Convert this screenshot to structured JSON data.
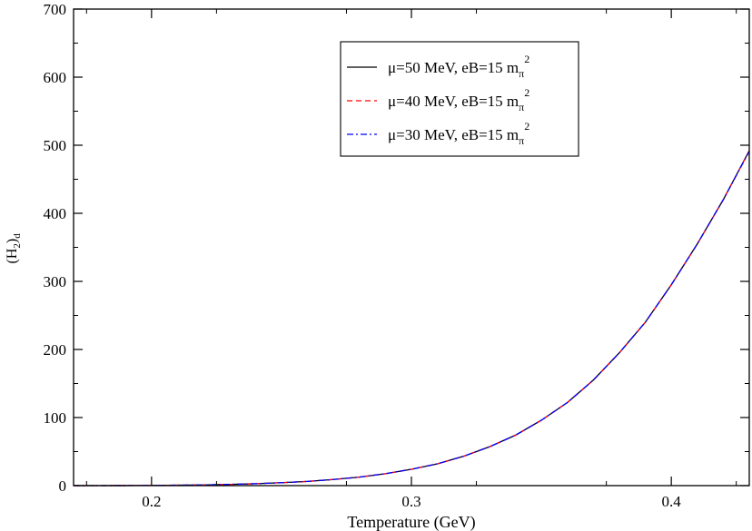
{
  "chart_data": {
    "type": "line",
    "xlabel": "Temperature (GeV)",
    "ylabel": {
      "base": "(H",
      "sub1": "2",
      "close": ")",
      "sub2": "d"
    },
    "xlim": [
      0.17,
      0.43
    ],
    "ylim": [
      0,
      700
    ],
    "xticks": [
      0.2,
      0.3,
      0.4
    ],
    "xtick_labels": [
      "0.2",
      "0.3",
      "0.4"
    ],
    "yticks": [
      0,
      100,
      200,
      300,
      400,
      500,
      600,
      700
    ],
    "ytick_labels": [
      "0",
      "100",
      "200",
      "300",
      "400",
      "500",
      "600",
      "700"
    ],
    "grid": false,
    "legend_position": "top-right",
    "x": [
      0.17,
      0.18,
      0.19,
      0.2,
      0.21,
      0.22,
      0.23,
      0.24,
      0.25,
      0.26,
      0.27,
      0.28,
      0.29,
      0.3,
      0.31,
      0.32,
      0.33,
      0.34,
      0.35,
      0.36,
      0.37,
      0.38,
      0.39,
      0.4,
      0.41,
      0.42,
      0.43
    ],
    "series": [
      {
        "name": "μ=50 MeV, eB=15 m",
        "legend_sub": "π",
        "legend_sup": "2",
        "color": "#000000",
        "dash": "",
        "values": [
          0,
          0,
          0.1,
          0.3,
          0.6,
          1,
          1.8,
          2.8,
          4.3,
          6.2,
          9,
          12.5,
          17.5,
          24,
          32,
          43,
          57,
          74,
          96,
          122,
          155,
          195,
          240,
          295,
          355,
          420,
          492
        ]
      },
      {
        "name": "μ=40 MeV, eB=15 m",
        "legend_sub": "π",
        "legend_sup": "2",
        "color": "#ff0000",
        "dash": "6,4",
        "values": [
          0,
          0,
          0.1,
          0.3,
          0.6,
          1,
          1.8,
          2.8,
          4.3,
          6.2,
          9,
          12.5,
          17.5,
          24,
          32,
          43,
          57,
          74,
          96,
          122,
          155,
          195,
          240,
          295,
          355,
          420,
          492
        ]
      },
      {
        "name": "μ=30 MeV, eB=15 m",
        "legend_sub": "π",
        "legend_sup": "2",
        "color": "#0000ff",
        "dash": "7,3,2,3",
        "values": [
          0,
          0,
          0.1,
          0.3,
          0.6,
          1,
          1.8,
          2.8,
          4.3,
          6.2,
          9,
          12.5,
          17.5,
          24,
          32,
          43,
          57,
          74,
          96,
          122,
          155,
          195,
          240,
          295,
          355,
          420,
          491
        ]
      }
    ]
  }
}
